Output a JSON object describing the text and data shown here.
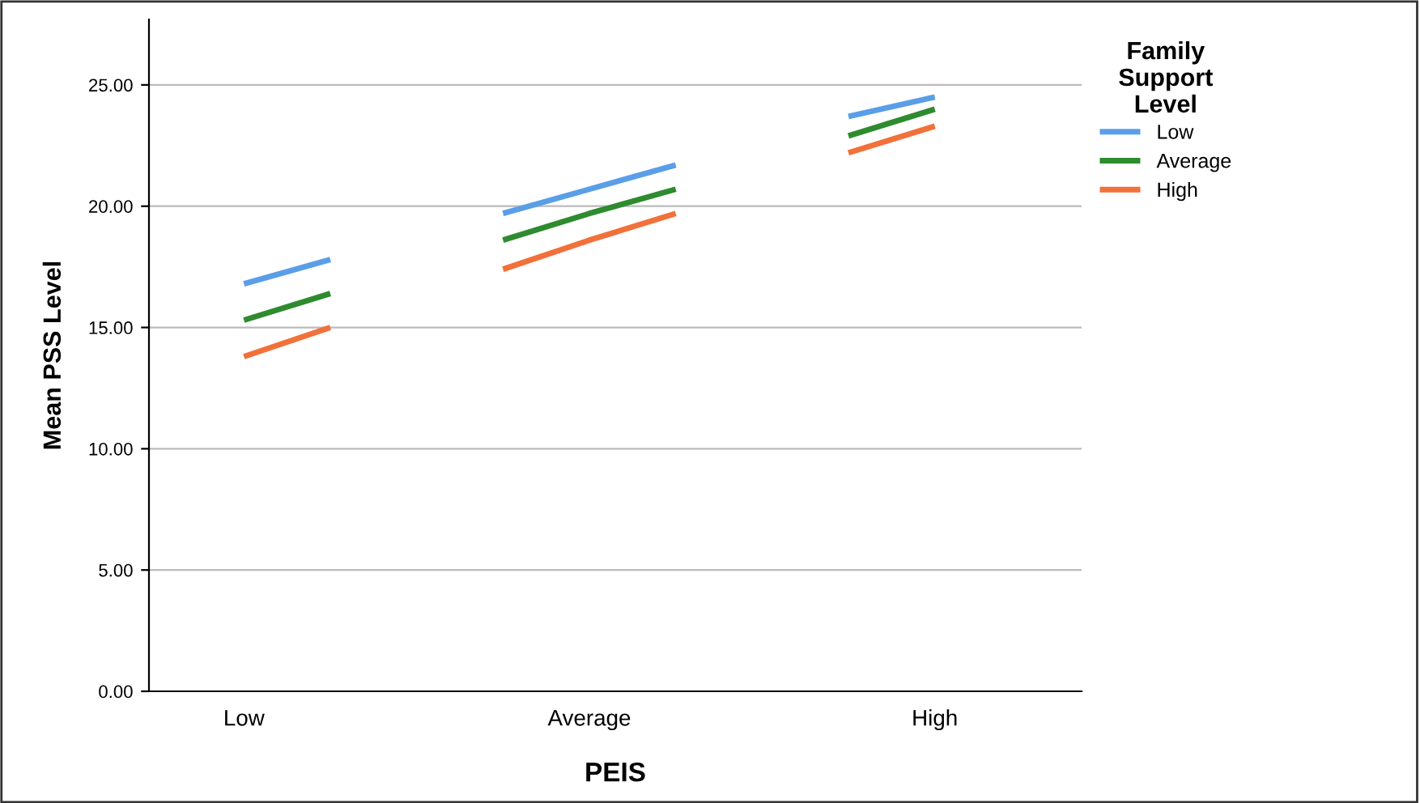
{
  "chart_data": {
    "type": "line",
    "xlabel": "PEIS",
    "ylabel": "Mean PSS Level",
    "legend_title": "Family Support Level",
    "categories": [
      "Low",
      null,
      null,
      null,
      "Average",
      null,
      null,
      null,
      "High"
    ],
    "series": [
      {
        "name": "Low",
        "color": "#5a9ee8",
        "values": [
          16.8,
          17.8,
          null,
          19.7,
          20.7,
          21.7,
          null,
          23.7,
          24.5
        ]
      },
      {
        "name": "Average",
        "color": "#2e8b2e",
        "values": [
          15.3,
          16.4,
          null,
          18.6,
          19.7,
          20.7,
          null,
          22.9,
          24.0
        ]
      },
      {
        "name": "High",
        "color": "#f2703a",
        "values": [
          13.8,
          15.0,
          null,
          17.4,
          18.6,
          19.7,
          null,
          22.2,
          23.3
        ]
      }
    ],
    "ylim": [
      0,
      27.7
    ],
    "yticks": [
      {
        "value": 0,
        "label": "0.00"
      },
      {
        "value": 5,
        "label": "5.00"
      },
      {
        "value": 10,
        "label": "10.00"
      },
      {
        "value": 15,
        "label": "15.00"
      },
      {
        "value": 20,
        "label": "20.00"
      },
      {
        "value": 25,
        "label": "25.00"
      }
    ],
    "grid": "y",
    "legend": "top right",
    "marker": "none",
    "line_style": "solid"
  }
}
